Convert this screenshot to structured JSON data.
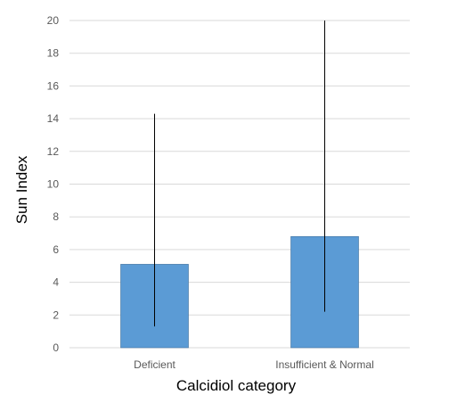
{
  "chart_data": {
    "type": "bar",
    "categories": [
      "Deficient",
      "Insufficient & Normal"
    ],
    "values": [
      5.1,
      6.8
    ],
    "error_bars": [
      {
        "low": 1.3,
        "high": 14.3
      },
      {
        "low": 2.2,
        "high": 20.0
      }
    ],
    "xlabel": "Calcidiol category",
    "ylabel": "Sun Index",
    "ylim": [
      0,
      20
    ],
    "yticks": [
      "0",
      "2",
      "4",
      "6",
      "8",
      "10",
      "12",
      "14",
      "16",
      "18",
      "20"
    ],
    "grid": true,
    "legend": "none",
    "colors": {
      "bar": "#5b9bd5",
      "bar_stroke": "#41719c",
      "grid": "#d9d9d9",
      "error_bar": "#000000"
    }
  }
}
